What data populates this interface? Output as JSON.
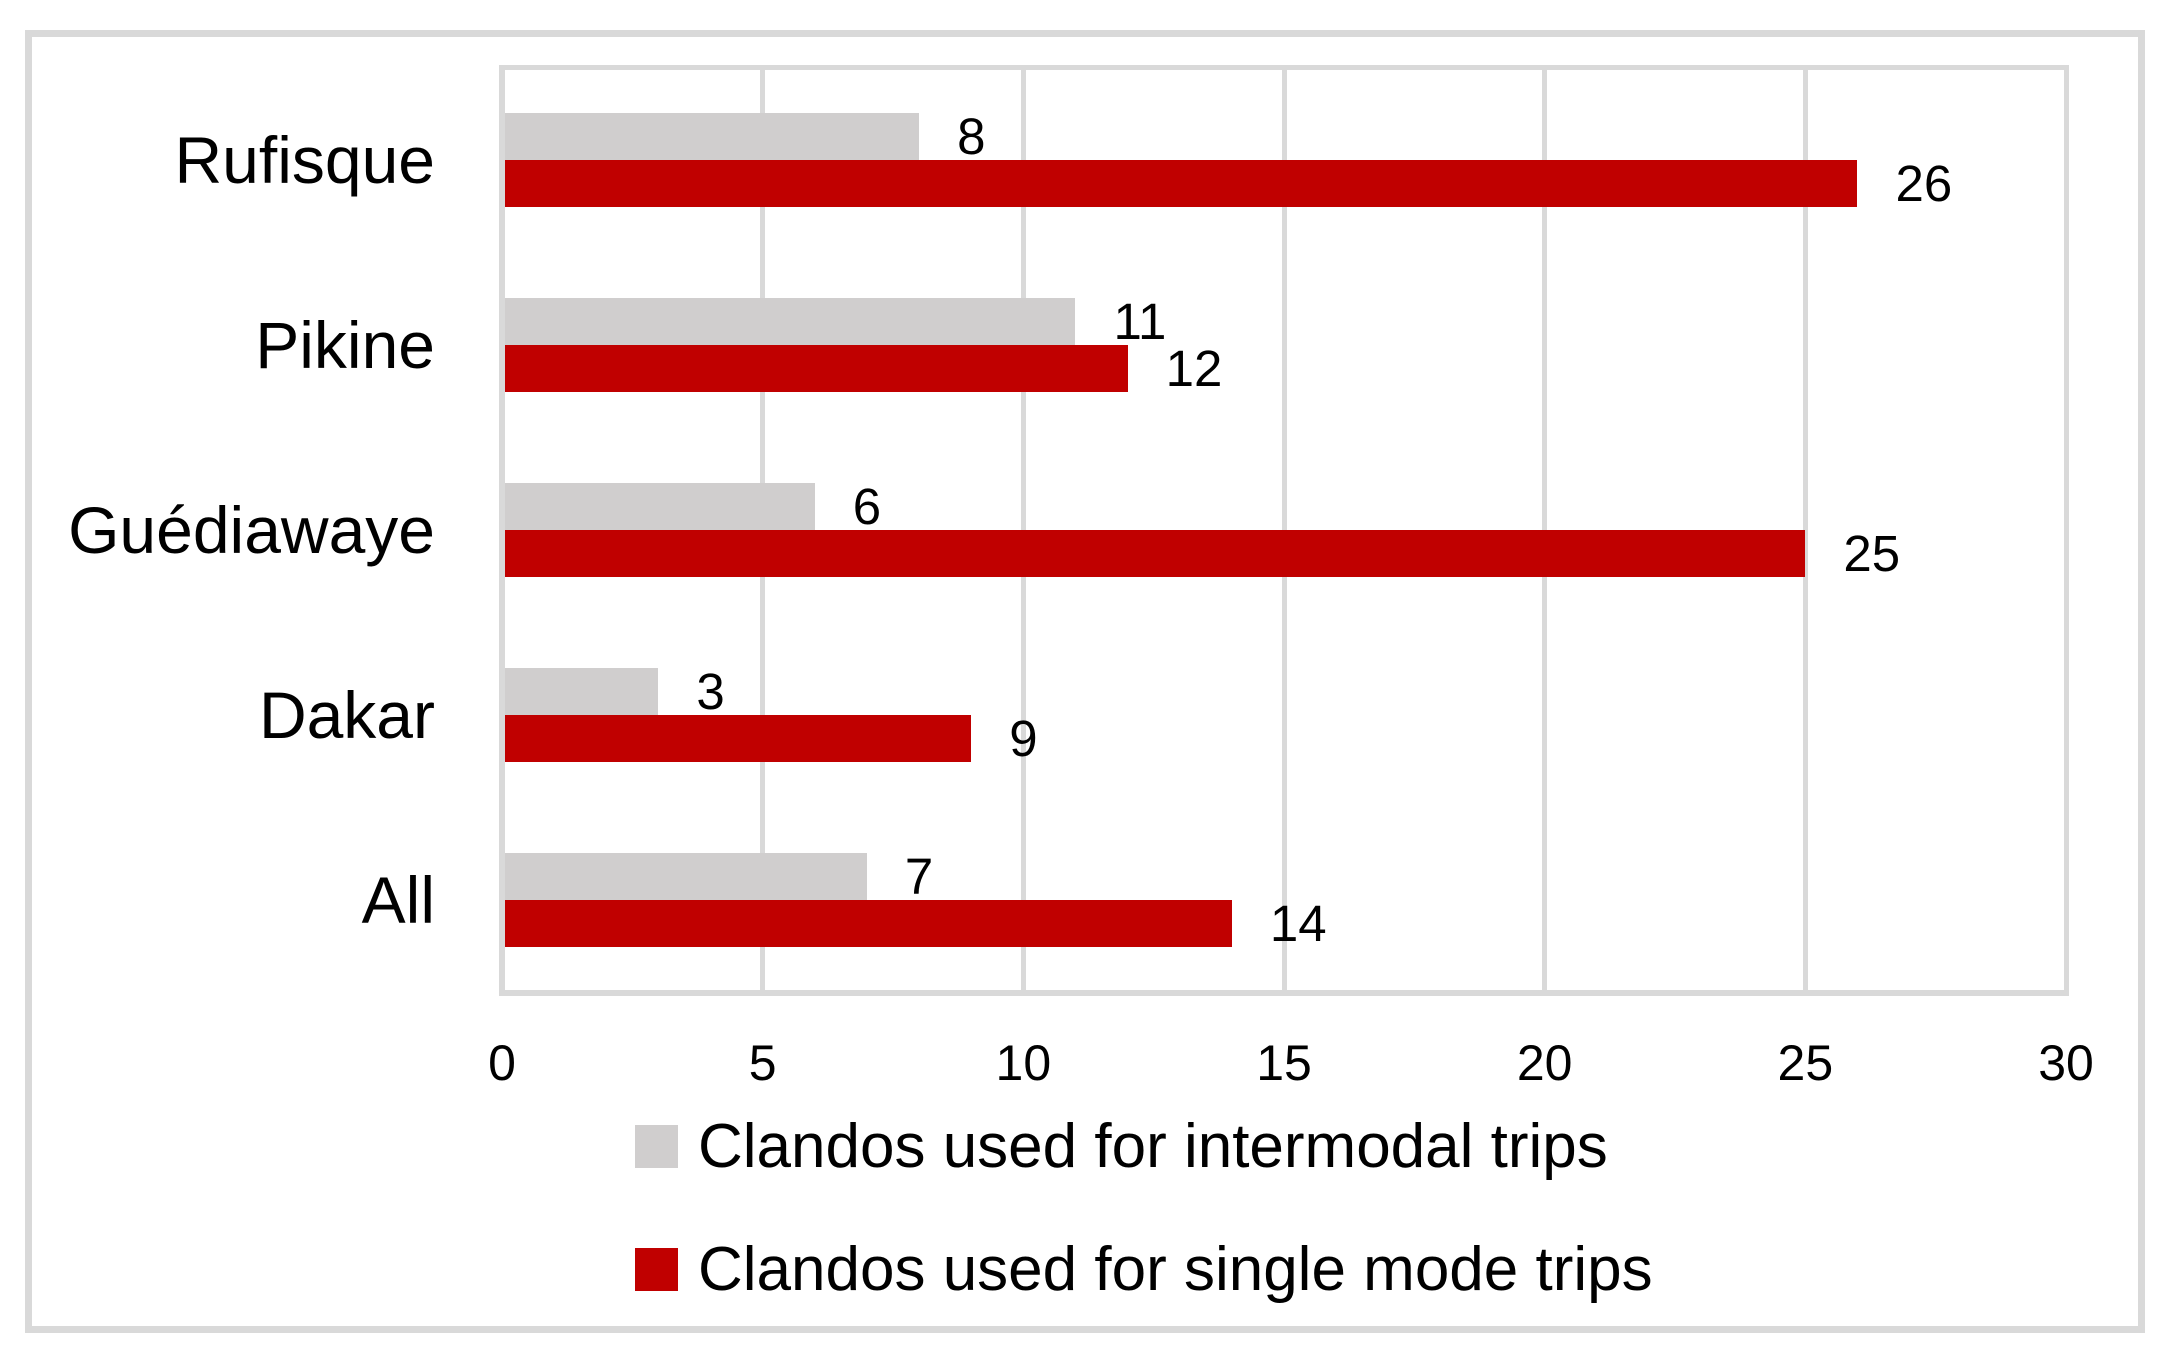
{
  "chart_data": {
    "type": "bar",
    "orientation": "horizontal",
    "title": "",
    "categories": [
      "Rufisque",
      "Pikine",
      "Guédiawaye",
      "Dakar",
      "All"
    ],
    "series": [
      {
        "name": "Clandos used for intermodal trips",
        "color": "#D0CECE",
        "values": [
          8,
          11,
          6,
          3,
          7
        ]
      },
      {
        "name": "Clandos used for single mode trips",
        "color": "#C00000",
        "values": [
          26,
          12,
          25,
          9,
          14
        ]
      }
    ],
    "xlabel": "",
    "ylabel": "",
    "x_axis": {
      "min": 0,
      "max": 30,
      "ticks": [
        0,
        5,
        10,
        15,
        20,
        25,
        30
      ]
    },
    "grid": true,
    "data_labels": true,
    "legend_position": "bottom-left"
  },
  "colors": {
    "background": "#FFFFFF",
    "border": "#D9D9D9",
    "gridline": "#D9D9D9",
    "text": "#000000",
    "series_intermodal": "#D0CECE",
    "series_single_mode": "#C00000"
  }
}
